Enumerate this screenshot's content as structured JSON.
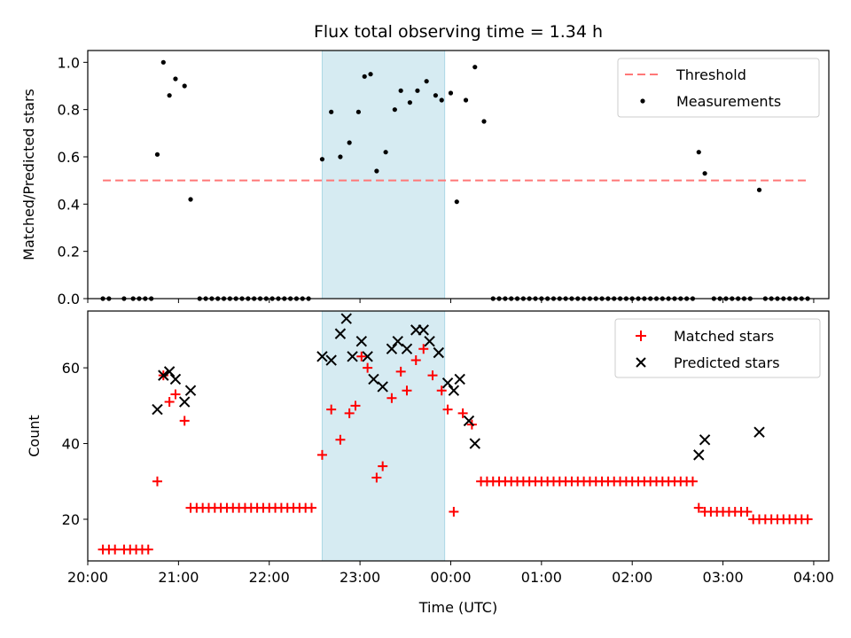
{
  "chart_data": [
    {
      "type": "scatter",
      "title": "Flux total observing time = 1.34 h",
      "ylabel": "Matched/Predicted stars",
      "xlim": [
        "20:00",
        "04:10"
      ],
      "ylim": [
        0.0,
        1.05
      ],
      "x_ticks": [
        "20:00",
        "21:00",
        "22:00",
        "23:00",
        "00:00",
        "01:00",
        "02:00",
        "03:00",
        "04:00"
      ],
      "y_ticks": [
        "0.0",
        "0.2",
        "0.4",
        "0.6",
        "0.8",
        "1.0"
      ],
      "shaded_interval": [
        "22:35",
        "23:56"
      ],
      "legend": {
        "placement": "top-right",
        "entries": [
          "Threshold",
          "Measurements"
        ]
      },
      "threshold": {
        "name": "Threshold",
        "value": 0.5,
        "x_range": [
          "20:10",
          "03:55"
        ],
        "color": "#ff7777"
      },
      "series": [
        {
          "name": "Measurements",
          "color": "#000000",
          "marker": "dot",
          "points": [
            [
              "20:10",
              0
            ],
            [
              "20:14",
              0
            ],
            [
              "20:24",
              0
            ],
            [
              "20:30",
              0
            ],
            [
              "20:34",
              0
            ],
            [
              "20:38",
              0
            ],
            [
              "20:42",
              0
            ],
            [
              "20:46",
              0.61
            ],
            [
              "20:50",
              1.0
            ],
            [
              "20:54",
              0.86
            ],
            [
              "20:58",
              0.93
            ],
            [
              "21:04",
              0.9
            ],
            [
              "21:08",
              0.42
            ],
            [
              "21:14",
              0
            ],
            [
              "21:18",
              0
            ],
            [
              "21:22",
              0
            ],
            [
              "21:26",
              0
            ],
            [
              "21:30",
              0
            ],
            [
              "21:34",
              0
            ],
            [
              "21:38",
              0
            ],
            [
              "21:42",
              0
            ],
            [
              "21:46",
              0
            ],
            [
              "21:50",
              0
            ],
            [
              "21:54",
              0
            ],
            [
              "21:58",
              0
            ],
            [
              "22:02",
              0
            ],
            [
              "22:06",
              0
            ],
            [
              "22:10",
              0
            ],
            [
              "22:14",
              0
            ],
            [
              "22:18",
              0
            ],
            [
              "22:22",
              0
            ],
            [
              "22:26",
              0
            ],
            [
              "22:35",
              0.59
            ],
            [
              "22:41",
              0.79
            ],
            [
              "22:47",
              0.6
            ],
            [
              "22:53",
              0.66
            ],
            [
              "22:59",
              0.79
            ],
            [
              "23:03",
              0.94
            ],
            [
              "23:07",
              0.95
            ],
            [
              "23:11",
              0.54
            ],
            [
              "23:17",
              0.62
            ],
            [
              "23:23",
              0.8
            ],
            [
              "23:27",
              0.88
            ],
            [
              "23:33",
              0.83
            ],
            [
              "23:38",
              0.88
            ],
            [
              "23:44",
              0.92
            ],
            [
              "23:50",
              0.86
            ],
            [
              "23:54",
              0.84
            ],
            [
              "00:00",
              0.87
            ],
            [
              "00:04",
              0.41
            ],
            [
              "00:10",
              0.84
            ],
            [
              "00:16",
              0.98
            ],
            [
              "00:22",
              0.75
            ],
            [
              "00:28",
              0
            ],
            [
              "00:32",
              0
            ],
            [
              "00:36",
              0
            ],
            [
              "00:40",
              0
            ],
            [
              "00:44",
              0
            ],
            [
              "00:48",
              0
            ],
            [
              "00:52",
              0
            ],
            [
              "00:56",
              0
            ],
            [
              "01:00",
              0
            ],
            [
              "01:04",
              0
            ],
            [
              "01:08",
              0
            ],
            [
              "01:12",
              0
            ],
            [
              "01:16",
              0
            ],
            [
              "01:20",
              0
            ],
            [
              "01:24",
              0
            ],
            [
              "01:28",
              0
            ],
            [
              "01:32",
              0
            ],
            [
              "01:36",
              0
            ],
            [
              "01:40",
              0
            ],
            [
              "01:44",
              0
            ],
            [
              "01:48",
              0
            ],
            [
              "01:52",
              0
            ],
            [
              "01:56",
              0
            ],
            [
              "02:00",
              0
            ],
            [
              "02:04",
              0
            ],
            [
              "02:08",
              0
            ],
            [
              "02:12",
              0
            ],
            [
              "02:16",
              0
            ],
            [
              "02:20",
              0
            ],
            [
              "02:24",
              0
            ],
            [
              "02:28",
              0
            ],
            [
              "02:32",
              0
            ],
            [
              "02:36",
              0
            ],
            [
              "02:40",
              0
            ],
            [
              "02:44",
              0.62
            ],
            [
              "02:48",
              0.53
            ],
            [
              "02:54",
              0
            ],
            [
              "02:58",
              0
            ],
            [
              "03:02",
              0
            ],
            [
              "03:06",
              0
            ],
            [
              "03:10",
              0
            ],
            [
              "03:14",
              0
            ],
            [
              "03:18",
              0
            ],
            [
              "03:24",
              0.46
            ],
            [
              "03:28",
              0
            ],
            [
              "03:32",
              0
            ],
            [
              "03:36",
              0
            ],
            [
              "03:40",
              0
            ],
            [
              "03:44",
              0
            ],
            [
              "03:48",
              0
            ],
            [
              "03:52",
              0
            ],
            [
              "03:56",
              0
            ]
          ]
        }
      ]
    },
    {
      "type": "scatter",
      "xlabel": "Time (UTC)",
      "ylabel": "Count",
      "xlim": [
        "20:00",
        "04:10"
      ],
      "ylim": [
        9,
        75
      ],
      "x_ticks": [
        "20:00",
        "21:00",
        "22:00",
        "23:00",
        "00:00",
        "01:00",
        "02:00",
        "03:00",
        "04:00"
      ],
      "y_ticks": [
        "20",
        "40",
        "60"
      ],
      "shaded_interval": [
        "22:35",
        "23:56"
      ],
      "legend": {
        "placement": "top-right",
        "entries": [
          "Matched stars",
          "Predicted stars"
        ]
      },
      "series": [
        {
          "name": "Matched stars",
          "color": "#ff0000",
          "marker": "plus",
          "points": [
            [
              "20:10",
              12
            ],
            [
              "20:14",
              12
            ],
            [
              "20:18",
              12
            ],
            [
              "20:24",
              12
            ],
            [
              "20:28",
              12
            ],
            [
              "20:32",
              12
            ],
            [
              "20:36",
              12
            ],
            [
              "20:40",
              12
            ],
            [
              "20:46",
              30
            ],
            [
              "20:50",
              58
            ],
            [
              "20:54",
              51
            ],
            [
              "20:58",
              53
            ],
            [
              "21:04",
              46
            ],
            [
              "21:08",
              23
            ],
            [
              "21:12",
              23
            ],
            [
              "21:16",
              23
            ],
            [
              "21:20",
              23
            ],
            [
              "21:24",
              23
            ],
            [
              "21:28",
              23
            ],
            [
              "21:32",
              23
            ],
            [
              "21:36",
              23
            ],
            [
              "21:40",
              23
            ],
            [
              "21:44",
              23
            ],
            [
              "21:48",
              23
            ],
            [
              "21:52",
              23
            ],
            [
              "21:56",
              23
            ],
            [
              "22:00",
              23
            ],
            [
              "22:04",
              23
            ],
            [
              "22:08",
              23
            ],
            [
              "22:12",
              23
            ],
            [
              "22:16",
              23
            ],
            [
              "22:20",
              23
            ],
            [
              "22:24",
              23
            ],
            [
              "22:28",
              23
            ],
            [
              "22:35",
              37
            ],
            [
              "22:41",
              49
            ],
            [
              "22:47",
              41
            ],
            [
              "22:53",
              48
            ],
            [
              "22:57",
              50
            ],
            [
              "23:01",
              63
            ],
            [
              "23:05",
              60
            ],
            [
              "23:11",
              31
            ],
            [
              "23:15",
              34
            ],
            [
              "23:21",
              52
            ],
            [
              "23:27",
              59
            ],
            [
              "23:31",
              54
            ],
            [
              "23:37",
              62
            ],
            [
              "23:42",
              65
            ],
            [
              "23:48",
              58
            ],
            [
              "23:54",
              54
            ],
            [
              "23:58",
              49
            ],
            [
              "00:02",
              22
            ],
            [
              "00:08",
              48
            ],
            [
              "00:14",
              45
            ],
            [
              "00:20",
              30
            ],
            [
              "00:24",
              30
            ],
            [
              "00:28",
              30
            ],
            [
              "00:32",
              30
            ],
            [
              "00:36",
              30
            ],
            [
              "00:40",
              30
            ],
            [
              "00:44",
              30
            ],
            [
              "00:48",
              30
            ],
            [
              "00:52",
              30
            ],
            [
              "00:56",
              30
            ],
            [
              "01:00",
              30
            ],
            [
              "01:04",
              30
            ],
            [
              "01:08",
              30
            ],
            [
              "01:12",
              30
            ],
            [
              "01:16",
              30
            ],
            [
              "01:20",
              30
            ],
            [
              "01:24",
              30
            ],
            [
              "01:28",
              30
            ],
            [
              "01:32",
              30
            ],
            [
              "01:36",
              30
            ],
            [
              "01:40",
              30
            ],
            [
              "01:44",
              30
            ],
            [
              "01:48",
              30
            ],
            [
              "01:52",
              30
            ],
            [
              "01:56",
              30
            ],
            [
              "02:00",
              30
            ],
            [
              "02:04",
              30
            ],
            [
              "02:08",
              30
            ],
            [
              "02:12",
              30
            ],
            [
              "02:16",
              30
            ],
            [
              "02:20",
              30
            ],
            [
              "02:24",
              30
            ],
            [
              "02:28",
              30
            ],
            [
              "02:32",
              30
            ],
            [
              "02:36",
              30
            ],
            [
              "02:40",
              30
            ],
            [
              "02:44",
              23
            ],
            [
              "02:48",
              22
            ],
            [
              "02:52",
              22
            ],
            [
              "02:56",
              22
            ],
            [
              "03:00",
              22
            ],
            [
              "03:04",
              22
            ],
            [
              "03:08",
              22
            ],
            [
              "03:12",
              22
            ],
            [
              "03:16",
              22
            ],
            [
              "03:20",
              20
            ],
            [
              "03:24",
              20
            ],
            [
              "03:28",
              20
            ],
            [
              "03:32",
              20
            ],
            [
              "03:36",
              20
            ],
            [
              "03:40",
              20
            ],
            [
              "03:44",
              20
            ],
            [
              "03:48",
              20
            ],
            [
              "03:52",
              20
            ],
            [
              "03:56",
              20
            ]
          ]
        },
        {
          "name": "Predicted stars",
          "color": "#000000",
          "marker": "x",
          "points": [
            [
              "20:46",
              49
            ],
            [
              "20:50",
              58
            ],
            [
              "20:54",
              59
            ],
            [
              "20:58",
              57
            ],
            [
              "21:04",
              51
            ],
            [
              "21:08",
              54
            ],
            [
              "22:35",
              63
            ],
            [
              "22:41",
              62
            ],
            [
              "22:47",
              69
            ],
            [
              "22:51",
              73
            ],
            [
              "22:55",
              63
            ],
            [
              "23:01",
              67
            ],
            [
              "23:05",
              63
            ],
            [
              "23:09",
              57
            ],
            [
              "23:15",
              55
            ],
            [
              "23:21",
              65
            ],
            [
              "23:25",
              67
            ],
            [
              "23:31",
              65
            ],
            [
              "23:37",
              70
            ],
            [
              "23:42",
              70
            ],
            [
              "23:46",
              67
            ],
            [
              "23:52",
              64
            ],
            [
              "23:58",
              56
            ],
            [
              "00:02",
              54
            ],
            [
              "00:06",
              57
            ],
            [
              "00:12",
              46
            ],
            [
              "00:16",
              40
            ],
            [
              "02:44",
              37
            ],
            [
              "02:48",
              41
            ],
            [
              "03:24",
              43
            ]
          ]
        }
      ]
    }
  ]
}
